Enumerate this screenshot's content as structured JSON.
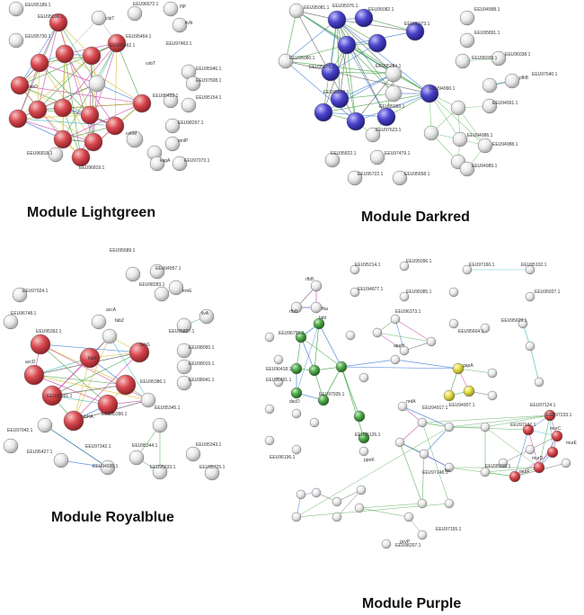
{
  "colors": {
    "white": "#e8e8e8",
    "red": "#d9484e",
    "blue": "#4b44cc",
    "green": "#4fa84a",
    "yellow": "#e2dc46"
  },
  "modules": [
    {
      "key": "lightgreen",
      "title": "Module Lightgreen",
      "labels": [
        "EEU95189.1",
        "EEU95730.1",
        "EEU95636.1",
        "cbiT",
        "EEU96672.1",
        "pgi",
        "ilvN",
        "EEU95464.1",
        "EEU97463.1",
        "EEU95462.1",
        "cobT",
        "EEU95946.1",
        "EEU97508.1",
        "EEU95459.1",
        "EEU95154.1",
        "cobO",
        "cobM",
        "EEU98297.1",
        "mnlP",
        "kagA",
        "EEU97073.1",
        "EEU96818.1",
        "EEU96819.1"
      ]
    },
    {
      "key": "darkred",
      "title": "Module Darkred",
      "labels": [
        "EEU95081.1",
        "EEU95076.1",
        "EEU95082.1",
        "EEU94998.1",
        "EEU95891.1",
        "EEU95073.1",
        "EEU95080.1",
        "EEU95075.1",
        "EEU95284.1",
        "EEU95079.1",
        "EEU94990.1",
        "EEU95089.1",
        "EEU96039.1",
        "EEU96038.1",
        "pfkB",
        "EEU97640.1",
        "EEU94991.1",
        "EEU97623.1",
        "EEU94986.1",
        "EEU94988.1",
        "EEU95822.1",
        "EEU97479.1",
        "EEU94989.1",
        "EEU95722.1",
        "EEU95658.1"
      ]
    },
    {
      "key": "royalblue",
      "title": "Module Royalblue",
      "labels": [
        "EEU95689.1",
        "EEU94957.1",
        "EEU97924.1",
        "EEU98283.1",
        "trmE",
        "EEU96748.1",
        "accA",
        "fabZ",
        "EEU95837.1",
        "ilvA",
        "EEU95392.1",
        "fabG",
        "EEU98050.1",
        "accD",
        "fabF",
        "EEU98019.1",
        "EEU95386.1",
        "EEU98041.1",
        "EEU95391.1",
        "EEU95390.1",
        "fabHA",
        "EEU95345.1",
        "EEU97042.1",
        "EEU97342.1",
        "EEU95344.1",
        "EEU95343.1",
        "EEU95427.1",
        "EEU94935.1",
        "EEU95633.1",
        "EEU95725.1"
      ]
    },
    {
      "key": "purple",
      "title": "Module Purple",
      "labels": [
        "rfbB",
        "fba",
        "rfbD",
        "EEU95214.1",
        "EEU95096.1",
        "EEU97160.1",
        "EEU95102.1",
        "EEU94877.1",
        "EEU95085.1",
        "EEU95037.1",
        "fabI",
        "EEU96755.1",
        "EEU96373.1",
        "apaH",
        "EEU95604.1",
        "EEU95609.1",
        "gapA",
        "EEU94907.1",
        "EEU96418.1",
        "EEU96491.1",
        "dacD",
        "EEU97935.1",
        "EEU95126.1",
        "ppnK",
        "nrdA",
        "ftsI",
        "EEU97124.1",
        "EEU97233.1",
        "EEU97137.1",
        "murC",
        "murD",
        "murE",
        "murF",
        "EEU95015.1",
        "EEU94917.1",
        "EEU97148.1",
        "EEU96196.1",
        "EEU97155.1",
        "gcvP",
        "EEU98207.1"
      ]
    }
  ]
}
